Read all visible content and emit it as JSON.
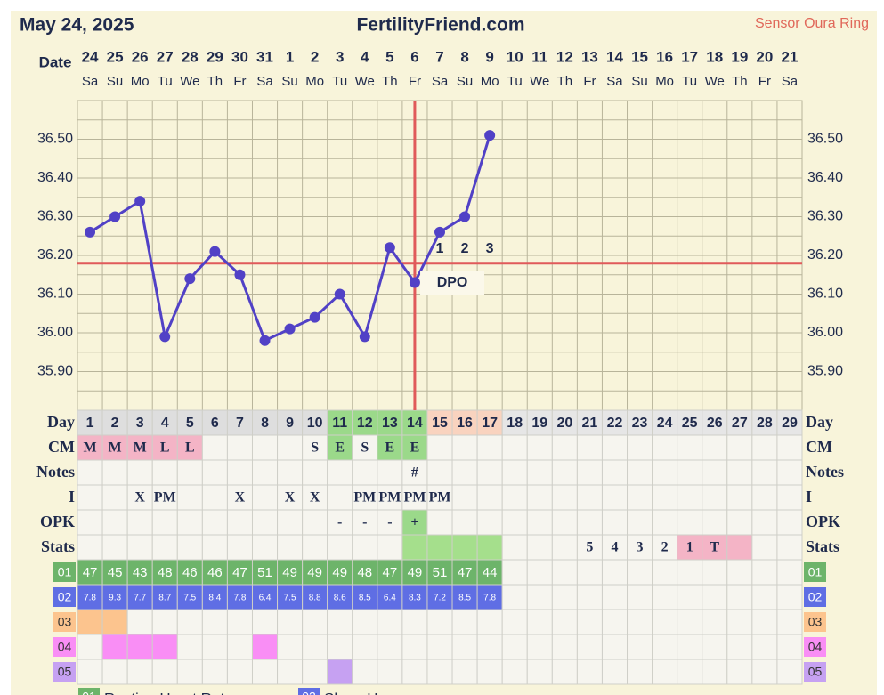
{
  "header": {
    "date": "May 24, 2025",
    "site": "FertilityFriend.com",
    "sensor": "Sensor Oura Ring"
  },
  "chart_data": {
    "type": "line",
    "date_label": "Date",
    "categories": [
      "24",
      "25",
      "26",
      "27",
      "28",
      "29",
      "30",
      "31",
      "1",
      "2",
      "3",
      "4",
      "5",
      "6",
      "7",
      "8",
      "9",
      "10",
      "11",
      "12",
      "13",
      "14",
      "15",
      "16",
      "17",
      "18",
      "19",
      "20",
      "21"
    ],
    "weekdays": [
      "Sa",
      "Su",
      "Mo",
      "Tu",
      "We",
      "Th",
      "Fr",
      "Sa",
      "Su",
      "Mo",
      "Tu",
      "We",
      "Th",
      "Fr",
      "Sa",
      "Su",
      "Mo",
      "Tu",
      "We",
      "Th",
      "Fr",
      "Sa",
      "Su",
      "Mo",
      "Tu",
      "We",
      "Th",
      "Fr",
      "Sa"
    ],
    "series": [
      {
        "color": "#5141c6",
        "values": [
          36.26,
          36.3,
          36.34,
          35.99,
          36.14,
          36.21,
          36.15,
          35.98,
          36.01,
          36.04,
          36.1,
          35.99,
          36.22,
          36.13,
          36.26,
          36.3,
          36.51,
          null,
          null,
          null,
          null,
          null,
          null,
          null,
          null,
          null,
          null,
          null,
          null
        ]
      }
    ],
    "ylim": [
      35.8,
      36.6
    ],
    "yticks": [
      {
        "value": 35.9,
        "label": "35.90"
      },
      {
        "value": 36.0,
        "label": "36.00"
      },
      {
        "value": 36.1,
        "label": "36.10"
      },
      {
        "value": 36.2,
        "label": "36.20"
      },
      {
        "value": 36.3,
        "label": "36.30"
      },
      {
        "value": 36.4,
        "label": "36.40"
      },
      {
        "value": 36.5,
        "label": "36.50"
      }
    ],
    "grid": true,
    "coverline": 36.18,
    "ovulation_day": 14,
    "line_color": "#e05a5a",
    "dpo": {
      "label": "DPO",
      "values": [
        1,
        2,
        3
      ]
    }
  },
  "table": {
    "rows": [
      {
        "label": "Day",
        "cells": [
          1,
          2,
          3,
          4,
          5,
          6,
          7,
          8,
          9,
          10,
          11,
          12,
          13,
          14,
          15,
          16,
          17,
          18,
          19,
          20,
          21,
          22,
          23,
          24,
          25,
          26,
          27,
          28,
          29
        ],
        "colors": [
          "#dedede",
          "#dedede",
          "#dedede",
          "#dedede",
          "#dedede",
          "#dedede",
          "#dedede",
          "#dedede",
          "#dedede",
          "#dedede",
          "#9bd98a",
          "#9bd98a",
          "#9bd98a",
          "#9bd98a",
          "#f9d3bf",
          "#f9d3bf",
          "#f9d3bf",
          "#e6e6e6",
          "#e6e6e6",
          "#e6e6e6",
          "#e6e6e6",
          "#e6e6e6",
          "#e6e6e6",
          "#e6e6e6",
          "#e6e6e6",
          "#e6e6e6",
          "#e6e6e6",
          "#e6e6e6",
          "#e6e6e6"
        ]
      },
      {
        "label": "CM",
        "cells": [
          "M",
          "M",
          "M",
          "L",
          "L",
          null,
          null,
          null,
          null,
          "S",
          "E",
          "S",
          "E",
          "E",
          null,
          null,
          null,
          null,
          null,
          null,
          null,
          null,
          null,
          null,
          null,
          null,
          null,
          null,
          null
        ],
        "colors": [
          "#f4b4c6",
          "#f4b4c6",
          "#f4b4c6",
          "#f4b4c6",
          "#f4b4c6",
          null,
          null,
          null,
          null,
          null,
          "#9bd98a",
          null,
          "#9bd98a",
          "#9bd98a",
          null,
          null,
          null,
          null,
          null,
          null,
          null,
          null,
          null,
          null,
          null,
          null,
          null,
          null,
          null
        ]
      },
      {
        "label": "Notes",
        "cells": [
          null,
          null,
          null,
          null,
          null,
          null,
          null,
          null,
          null,
          null,
          null,
          null,
          null,
          "#",
          null,
          null,
          null,
          null,
          null,
          null,
          null,
          null,
          null,
          null,
          null,
          null,
          null,
          null,
          null
        ]
      },
      {
        "label": "I",
        "cells": [
          null,
          null,
          "X",
          "PM",
          null,
          null,
          "X",
          null,
          "X",
          "X",
          null,
          "PM",
          "PM",
          "PM",
          "PM",
          null,
          null,
          null,
          null,
          null,
          null,
          null,
          null,
          null,
          null,
          null,
          null,
          null,
          null
        ]
      },
      {
        "label": "OPK",
        "cells": [
          null,
          null,
          null,
          null,
          null,
          null,
          null,
          null,
          null,
          null,
          "-",
          "-",
          "-",
          "+",
          null,
          null,
          null,
          null,
          null,
          null,
          null,
          null,
          null,
          null,
          null,
          null,
          null,
          null,
          null
        ],
        "colors": [
          null,
          null,
          null,
          null,
          null,
          null,
          null,
          null,
          null,
          null,
          null,
          null,
          null,
          "#9bd98a",
          null,
          null,
          null,
          null,
          null,
          null,
          null,
          null,
          null,
          null,
          null,
          null,
          null,
          null,
          null
        ]
      },
      {
        "label": "Stats",
        "cells": [
          null,
          null,
          null,
          null,
          null,
          null,
          null,
          null,
          null,
          null,
          null,
          null,
          null,
          null,
          null,
          null,
          null,
          null,
          null,
          null,
          "5",
          "4",
          "3",
          "2",
          "1",
          "T",
          null,
          null,
          null
        ],
        "colors": [
          null,
          null,
          null,
          null,
          null,
          null,
          null,
          null,
          null,
          null,
          null,
          null,
          null,
          "#a5df8c",
          "#a5df8c",
          "#a5df8c",
          "#a5df8c",
          null,
          null,
          null,
          null,
          null,
          null,
          null,
          "#f4b4c6",
          "#f4b4c6",
          "#f4b4c6",
          null,
          null
        ]
      }
    ],
    "data_rows": [
      {
        "label": "01",
        "color": "#6db46a",
        "cells": [
          47,
          45,
          43,
          48,
          46,
          46,
          47,
          51,
          49,
          49,
          49,
          48,
          47,
          49,
          51,
          47,
          44,
          null,
          null,
          null,
          null,
          null,
          null,
          null,
          null,
          null,
          null,
          null,
          null
        ]
      },
      {
        "label": "02",
        "color": "#5f6ee4",
        "cells": [
          7.8,
          9.3,
          7.7,
          8.7,
          7.5,
          8.4,
          7.8,
          6.4,
          7.5,
          8.8,
          8.6,
          8.5,
          6.4,
          8.3,
          7.2,
          8.5,
          7.8,
          null,
          null,
          null,
          null,
          null,
          null,
          null,
          null,
          null,
          null,
          null,
          null
        ]
      },
      {
        "label": "03",
        "color": "#fcc48e",
        "colors": [
          "#fcc48e",
          "#fcc48e",
          null,
          null,
          null,
          null,
          null,
          null,
          null,
          null,
          null,
          null,
          null,
          null,
          null,
          null,
          null,
          null,
          null,
          null,
          null,
          null,
          null,
          null,
          null,
          null,
          null,
          null,
          null
        ]
      },
      {
        "label": "04",
        "color": "#f98ef5",
        "colors": [
          null,
          "#f98ef5",
          "#f98ef5",
          "#f98ef5",
          null,
          null,
          null,
          "#f98ef5",
          null,
          null,
          null,
          null,
          null,
          null,
          null,
          null,
          null,
          null,
          null,
          null,
          null,
          null,
          null,
          null,
          null,
          null,
          null,
          null,
          null
        ]
      },
      {
        "label": "05",
        "color": "#c6a1f2",
        "colors": [
          null,
          null,
          null,
          null,
          null,
          null,
          null,
          null,
          null,
          null,
          "#c6a1f2",
          null,
          null,
          null,
          null,
          null,
          null,
          null,
          null,
          null,
          null,
          null,
          null,
          null,
          null,
          null,
          null,
          null,
          null
        ]
      }
    ],
    "legend": [
      {
        "label": "01",
        "name": "Resting Heart Rate"
      },
      {
        "label": "02",
        "name": "Sleep Hours"
      }
    ]
  }
}
